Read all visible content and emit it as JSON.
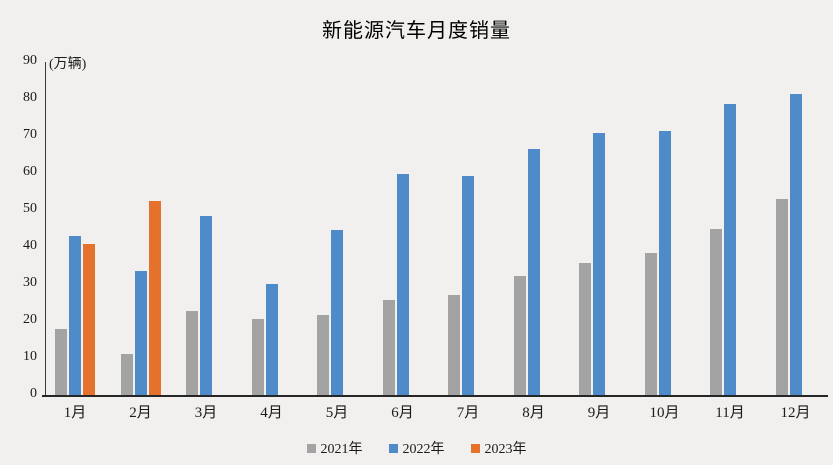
{
  "chart_data": {
    "type": "bar",
    "title": "新能源汽车月度销量",
    "unit_label": "(万辆)",
    "categories": [
      "1月",
      "2月",
      "3月",
      "4月",
      "5月",
      "6月",
      "7月",
      "8月",
      "9月",
      "10月",
      "11月",
      "12月"
    ],
    "series": [
      {
        "name": "2021年",
        "color": "#a3a3a3",
        "values": [
          17.9,
          11.0,
          22.6,
          20.6,
          21.7,
          25.6,
          27.1,
          32.1,
          35.7,
          38.3,
          45.0,
          53.1
        ]
      },
      {
        "name": "2022年",
        "color": "#4f8bc8",
        "values": [
          43.1,
          33.4,
          48.4,
          29.9,
          44.7,
          59.6,
          59.3,
          66.6,
          70.8,
          71.4,
          78.6,
          81.4
        ]
      },
      {
        "name": "2023年",
        "color": "#e4712c",
        "values": [
          40.8,
          52.5,
          null,
          null,
          null,
          null,
          null,
          null,
          null,
          null,
          null,
          null
        ]
      }
    ],
    "ylim": [
      0,
      90
    ],
    "ytick_step": 10,
    "yticks": [
      0,
      10,
      20,
      30,
      40,
      50,
      60,
      70,
      80,
      90
    ],
    "grid": false,
    "legend_position": "bottom",
    "colors": {
      "background": "#f1f0ee",
      "axis": "#262626",
      "text": "#1a1a1a"
    }
  }
}
